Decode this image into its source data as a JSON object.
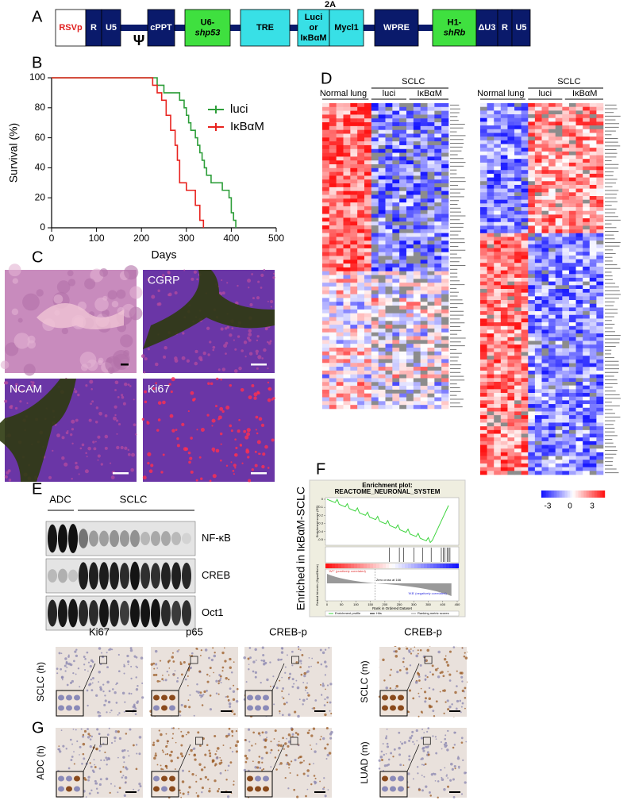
{
  "a": {
    "label": "A",
    "top_label": "2A",
    "psi": "Ψ",
    "blocks": [
      [
        "RSVp"
      ],
      [
        "R"
      ],
      [
        "U5"
      ],
      [
        "cPPT"
      ],
      [
        "U6-",
        "shp53"
      ],
      [
        "TRE"
      ],
      [
        "Luci",
        "or",
        "IκBαM"
      ],
      [
        "Mycl1"
      ],
      [
        "WPRE"
      ],
      [
        "H1-",
        "shRb"
      ],
      [
        "ΔU3"
      ],
      [
        "R"
      ],
      [
        "U5"
      ]
    ]
  },
  "b": {
    "label": "B",
    "type": "line",
    "xlabel": "Days",
    "ylabel": "Survival (%)",
    "xlim": [
      0,
      500
    ],
    "ylim": [
      0,
      100
    ],
    "xticks": [
      0,
      100,
      200,
      300,
      400,
      500
    ],
    "yticks": [
      0,
      20,
      40,
      60,
      80,
      100
    ],
    "series": [
      {
        "name": "luci",
        "color": "#2e9e3a",
        "x": [
          0,
          235,
          235,
          250,
          250,
          285,
          285,
          295,
          295,
          300,
          300,
          305,
          305,
          310,
          310,
          320,
          320,
          325,
          325,
          330,
          330,
          335,
          335,
          340,
          340,
          345,
          345,
          355,
          355,
          380,
          380,
          395,
          395,
          400,
          400,
          405,
          405,
          410,
          410
        ],
        "values": [
          100,
          100,
          95,
          95,
          90,
          90,
          85,
          85,
          80,
          80,
          75,
          75,
          70,
          70,
          65,
          65,
          60,
          60,
          55,
          55,
          50,
          50,
          45,
          45,
          40,
          40,
          35,
          35,
          30,
          30,
          25,
          25,
          20,
          20,
          10,
          10,
          5,
          5,
          0
        ]
      },
      {
        "name": "IκBαM",
        "color": "#e8231f",
        "x": [
          0,
          225,
          225,
          235,
          235,
          245,
          245,
          255,
          255,
          265,
          265,
          275,
          275,
          280,
          280,
          285,
          285,
          300,
          300,
          320,
          320,
          330,
          330,
          338,
          338
        ],
        "values": [
          100,
          100,
          95,
          95,
          90,
          90,
          85,
          85,
          75,
          75,
          65,
          65,
          55,
          55,
          45,
          45,
          30,
          30,
          25,
          25,
          15,
          15,
          5,
          5,
          0
        ]
      }
    ]
  },
  "c": {
    "label": "C",
    "image_labels": [
      "CGRP",
      "NCAM",
      "Ki67"
    ]
  },
  "d": {
    "label": "D",
    "heatmaps": [
      {
        "group": "SCLC",
        "normal": "Normal lung",
        "subgroups": [
          "luci",
          "IκBαM"
        ]
      },
      {
        "group": "SCLC",
        "normal": "Normal lung",
        "subgroups": [
          "luci",
          "IκBαM"
        ]
      }
    ],
    "color_key": [
      -3,
      0,
      3
    ]
  },
  "e": {
    "label": "E",
    "groups": [
      "ADC",
      "SCLC"
    ],
    "blots": [
      "NF-κB",
      "CREB",
      "Oct1"
    ]
  },
  "f": {
    "label": "F",
    "side_label": "Enriched in IκBαM-SCLC",
    "title": [
      "Enrichment plot:",
      "REACTOME_NEURONAL_SYSTEM"
    ],
    "es_label": "Enrichment score (ES)",
    "es_ticks": [
      0,
      -0.1,
      -0.2,
      -0.3,
      -0.4,
      -0.5
    ],
    "metric_label": "Ranked list metric (Signal2Noise)",
    "x_label": "Rank in Ordered Dataset",
    "x_ticks": [
      0,
      50,
      100,
      150,
      200,
      250,
      300,
      350,
      400,
      450
    ],
    "pos_label": "'WT' (positively correlated)",
    "neg_label": "'IKB' (negatively correlated)",
    "zero_cross": "Zero cross at 166",
    "legend": [
      "Enrichment profile",
      "Hits",
      "Ranking metric scores"
    ]
  },
  "g": {
    "label": "G",
    "columns": [
      "Ki67",
      "p65",
      "CREB-p",
      "CREB-p"
    ],
    "rows": [
      "SCLC (h)",
      "ADC (h)",
      "SCLC (m)",
      "LUAD (m)"
    ]
  }
}
